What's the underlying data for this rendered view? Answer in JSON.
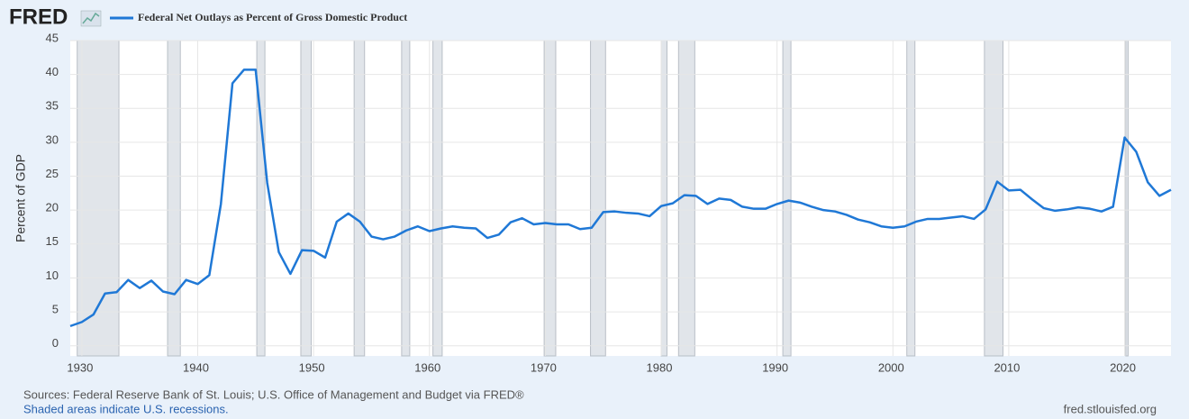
{
  "chart_data": {
    "type": "line",
    "logo": "FRED",
    "y_label": "Percent of GDP",
    "source": "Sources: Federal Reserve Bank of St. Louis; U.S. Office of Management and Budget via FRED®",
    "note": "Shaded areas indicate U.S. recessions.",
    "site": "fred.stlouisfed.org",
    "x": [
      1929,
      1930,
      1931,
      1932,
      1933,
      1934,
      1935,
      1936,
      1937,
      1938,
      1939,
      1940,
      1941,
      1942,
      1943,
      1944,
      1945,
      1946,
      1947,
      1948,
      1949,
      1950,
      1951,
      1952,
      1953,
      1954,
      1955,
      1956,
      1957,
      1958,
      1959,
      1960,
      1961,
      1962,
      1963,
      1964,
      1965,
      1966,
      1967,
      1968,
      1969,
      1970,
      1971,
      1972,
      1973,
      1974,
      1975,
      1976,
      1977,
      1978,
      1979,
      1980,
      1981,
      1982,
      1983,
      1984,
      1985,
      1986,
      1987,
      1988,
      1989,
      1990,
      1991,
      1992,
      1993,
      1994,
      1995,
      1996,
      1997,
      1998,
      1999,
      2000,
      2001,
      2002,
      2003,
      2004,
      2005,
      2006,
      2007,
      2008,
      2009,
      2010,
      2011,
      2012,
      2013,
      2014,
      2015,
      2016,
      2017,
      2018,
      2019,
      2020,
      2021,
      2022,
      2023,
      2024
    ],
    "series": [
      {
        "name": "Federal Net Outlays as Percent of Gross Domestic Product",
        "color": "#1f78d6",
        "values": [
          2.9,
          3.5,
          4.6,
          7.7,
          7.9,
          9.7,
          8.5,
          9.6,
          8.0,
          7.6,
          9.7,
          9.1,
          10.4,
          20.9,
          38.7,
          40.7,
          40.7,
          24.0,
          13.8,
          10.6,
          14.1,
          14.0,
          13.0,
          18.3,
          19.5,
          18.3,
          16.1,
          15.7,
          16.1,
          17.0,
          17.6,
          16.9,
          17.3,
          17.6,
          17.4,
          17.3,
          15.9,
          16.4,
          18.2,
          18.8,
          17.9,
          18.1,
          17.9,
          17.9,
          17.2,
          17.4,
          19.7,
          19.8,
          19.6,
          19.5,
          19.1,
          20.6,
          21.0,
          22.2,
          22.1,
          20.9,
          21.7,
          21.5,
          20.5,
          20.2,
          20.2,
          20.9,
          21.4,
          21.1,
          20.5,
          20.0,
          19.8,
          19.3,
          18.6,
          18.2,
          17.6,
          17.4,
          17.6,
          18.3,
          18.7,
          18.7,
          18.9,
          19.1,
          18.7,
          20.1,
          24.2,
          22.9,
          23.0,
          21.6,
          20.3,
          19.9,
          20.1,
          20.4,
          20.2,
          19.8,
          20.5,
          30.7,
          28.6,
          24.1,
          22.1,
          23.0
        ]
      }
    ],
    "recessions": [
      [
        1929.6,
        1933.2
      ],
      [
        1937.4,
        1938.5
      ],
      [
        1945.1,
        1945.8
      ],
      [
        1948.9,
        1949.8
      ],
      [
        1953.5,
        1954.4
      ],
      [
        1957.6,
        1958.3
      ],
      [
        1960.3,
        1961.1
      ],
      [
        1969.9,
        1970.9
      ],
      [
        1973.9,
        1975.2
      ],
      [
        1980.0,
        1980.5
      ],
      [
        1981.5,
        1982.9
      ],
      [
        1990.5,
        1991.2
      ],
      [
        2001.2,
        2001.9
      ],
      [
        2007.9,
        2009.5
      ],
      [
        2020.1,
        2020.3
      ]
    ],
    "xlim": [
      1929,
      2024
    ],
    "ylim": [
      -1.5,
      45
    ],
    "xticks": [
      1930,
      1940,
      1950,
      1960,
      1970,
      1980,
      1990,
      2000,
      2010,
      2020
    ],
    "yticks": [
      0,
      5,
      10,
      15,
      20,
      25,
      30,
      35,
      40,
      45
    ],
    "grid": true
  }
}
